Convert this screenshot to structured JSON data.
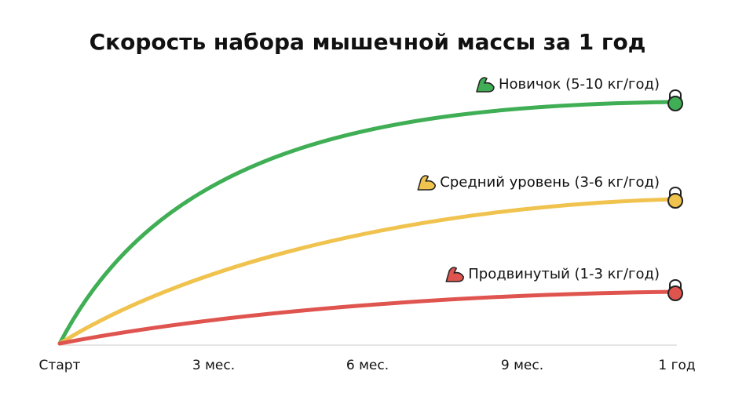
{
  "title": "Скорость набора мышечной массы за 1 год",
  "x_labels": [
    "Старт",
    "3 мес.",
    "6 мес.",
    "9 мес.",
    "1 год"
  ],
  "curves": [
    {
      "label": "Новичок (5-10 кг/год)",
      "color": "#3fae54"
    },
    {
      "label": "Средний уровень (3-6 кг/год)",
      "color": "#f0c24e"
    },
    {
      "label": "Продвинутый (1-3 кг/год)",
      "color": "#e0544f"
    }
  ]
}
